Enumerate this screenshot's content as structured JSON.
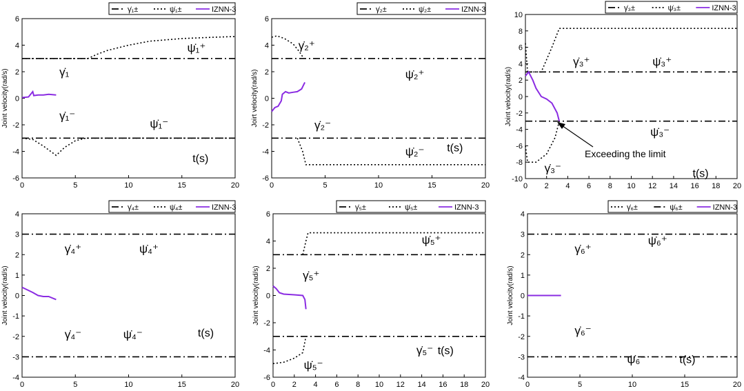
{
  "colors": {
    "izrnn": "#8a2be2",
    "limit": "#000000",
    "axis": "#000000"
  },
  "chart_data": [
    {
      "type": "line",
      "ylabel": "Joint velocity(rad/s)",
      "time_label": "t(s)",
      "xlim": [
        0,
        20
      ],
      "ylim": [
        -6,
        6
      ],
      "xticks": [
        "0",
        "5",
        "10",
        "15",
        "20"
      ],
      "yticks": [
        "-6",
        "-4",
        "-2",
        "0",
        "2",
        "4",
        "6"
      ],
      "legend": [
        "γ̇₁±",
        "ψ̇₁±",
        "IZNN-3"
      ],
      "labels": {
        "gamma_plus": "γ̇₁",
        "gamma_minus": "γ̇₁⁻",
        "psi_plus": "ψ̇₁⁺",
        "psi_minus": "ψ̇₁⁻"
      },
      "series": [
        {
          "name": "γ̇₁±",
          "style": "dashdot",
          "lines": [
            [
              [
                0,
                3
              ],
              [
                20,
                3
              ]
            ],
            [
              [
                0,
                -3
              ],
              [
                20,
                -3
              ]
            ]
          ]
        },
        {
          "name": "ψ̇₁±",
          "style": "dotted",
          "lines": [
            [
              [
                0,
                3
              ],
              [
                6.2,
                3
              ],
              [
                7,
                3.3
              ],
              [
                8,
                3.6
              ],
              [
                10,
                4.0
              ],
              [
                12,
                4.3
              ],
              [
                15,
                4.5
              ],
              [
                18,
                4.6
              ],
              [
                20,
                4.65
              ]
            ],
            [
              [
                0,
                -3
              ],
              [
                1,
                -3.1
              ],
              [
                2,
                -3.6
              ],
              [
                3.2,
                -4.3
              ],
              [
                4,
                -3.7
              ],
              [
                5,
                -3.2
              ],
              [
                6,
                -3
              ],
              [
                20,
                -3
              ]
            ]
          ]
        },
        {
          "name": "IZNN-3",
          "style": "solid",
          "lines": [
            [
              [
                0,
                0.05
              ],
              [
                0.6,
                0.1
              ],
              [
                0.8,
                0.3
              ],
              [
                1,
                0.5
              ],
              [
                1.1,
                0.2
              ],
              [
                1.5,
                0.25
              ],
              [
                2,
                0.25
              ],
              [
                2.5,
                0.3
              ],
              [
                3.2,
                0.25
              ]
            ]
          ]
        }
      ]
    },
    {
      "type": "line",
      "ylabel": "Joirt velocity(rad/s)",
      "time_label": "t(s)",
      "xlim": [
        0,
        20
      ],
      "ylim": [
        -6,
        6
      ],
      "xticks": [
        "0",
        "5",
        "10",
        "15",
        "20"
      ],
      "yticks": [
        "-6",
        "-4",
        "-2",
        "0",
        "2",
        "4",
        "6"
      ],
      "legend": [
        "γ̇₂±",
        "ψ̇₂±",
        "IZNN-3"
      ],
      "labels": {
        "gamma_plus": "γ̇₂⁺",
        "gamma_minus": "γ̇₂⁻",
        "psi_plus": "ψ̇₂⁺",
        "psi_minus": "ψ̇₂⁻"
      },
      "series": [
        {
          "name": "γ̇₂±",
          "style": "dashdot",
          "lines": [
            [
              [
                0,
                3
              ],
              [
                20,
                3
              ]
            ],
            [
              [
                0,
                -3
              ],
              [
                20,
                -3
              ]
            ]
          ]
        },
        {
          "name": "ψ̇₂±",
          "style": "dotted",
          "lines": [
            [
              [
                0,
                4.6
              ],
              [
                0.5,
                4.7
              ],
              [
                1.2,
                4.5
              ],
              [
                2,
                4.1
              ],
              [
                2.6,
                3.5
              ],
              [
                3,
                3
              ]
            ],
            [
              [
                2.4,
                -3
              ],
              [
                2.9,
                -4
              ],
              [
                3.2,
                -5
              ],
              [
                20,
                -5
              ]
            ]
          ]
        },
        {
          "name": "IZNN-3",
          "style": "solid",
          "lines": [
            [
              [
                0,
                -1.0
              ],
              [
                0.3,
                -0.7
              ],
              [
                0.6,
                -0.6
              ],
              [
                0.9,
                -0.2
              ],
              [
                1.0,
                0.3
              ],
              [
                1.3,
                0.5
              ],
              [
                1.6,
                0.4
              ],
              [
                2.0,
                0.45
              ],
              [
                2.4,
                0.5
              ],
              [
                2.8,
                0.7
              ],
              [
                3.1,
                1.2
              ]
            ]
          ]
        }
      ]
    },
    {
      "type": "line",
      "ylabel": "Joint velocity(rad/s)",
      "time_label": "t(s)",
      "annotation": "Exceeding the limit",
      "xlim": [
        0,
        20
      ],
      "ylim": [
        -10,
        10
      ],
      "xticks": [
        "0",
        "2",
        "4",
        "6",
        "8",
        "10",
        "12",
        "14",
        "16",
        "18",
        "20"
      ],
      "yticks": [
        "-10",
        "-8",
        "-6",
        "-4",
        "-2",
        "0",
        "2",
        "4",
        "6",
        "8",
        "10"
      ],
      "legend": [
        "γ̇₃±",
        "ψ̇₃±",
        "IZNN-3"
      ],
      "labels": {
        "gamma_plus": "γ̇₃⁺",
        "gamma_minus": "γ̇₃⁻",
        "psi_plus": "ψ̇₃⁺",
        "psi_minus": "ψ̇₃⁻"
      },
      "series": [
        {
          "name": "γ̇₃±",
          "style": "dashdot",
          "lines": [
            [
              [
                0,
                3
              ],
              [
                20,
                3
              ]
            ],
            [
              [
                0,
                -3
              ],
              [
                20,
                -3
              ]
            ]
          ]
        },
        {
          "name": "ψ̇₃±",
          "style": "dotted",
          "lines": [
            [
              [
                0,
                6.5
              ],
              [
                0.2,
                3
              ],
              [
                1.5,
                3
              ],
              [
                2.5,
                6
              ],
              [
                3.2,
                8.3
              ],
              [
                20,
                8.3
              ]
            ],
            [
              [
                0,
                -6
              ],
              [
                0.2,
                -8
              ],
              [
                1,
                -8
              ],
              [
                2,
                -7
              ],
              [
                2.8,
                -5
              ],
              [
                3.2,
                -3
              ]
            ]
          ]
        },
        {
          "name": "IZNN-3",
          "style": "solid",
          "lines": [
            [
              [
                0,
                2.5
              ],
              [
                0.3,
                3
              ],
              [
                0.7,
                2
              ],
              [
                1.0,
                1.0
              ],
              [
                1.5,
                0
              ],
              [
                2.0,
                -0.3
              ],
              [
                2.5,
                -0.8
              ],
              [
                3.0,
                -2
              ],
              [
                3.2,
                -3
              ]
            ]
          ]
        }
      ]
    },
    {
      "type": "line",
      "ylabel": "Joint velocity(rad/s)",
      "time_label": "t(s)",
      "xlim": [
        0,
        20
      ],
      "ylim": [
        -4,
        4
      ],
      "xticks": [
        "0",
        "5",
        "10",
        "15",
        "20"
      ],
      "yticks": [
        "-4",
        "-3",
        "-2",
        "-1",
        "0",
        "1",
        "2",
        "3",
        "4"
      ],
      "legend": [
        "γ̇₄±",
        "ψ̇₄±",
        "IZNN-3"
      ],
      "labels": {
        "gamma_plus": "γ̇₄⁺",
        "gamma_minus": "γ̇₄⁻",
        "psi_plus": "ψ̇₄⁺",
        "psi_minus": "ψ̇₄⁻"
      },
      "series": [
        {
          "name": "γ̇₄±",
          "style": "dashdot",
          "lines": [
            [
              [
                0,
                3
              ],
              [
                20,
                3
              ]
            ],
            [
              [
                0,
                -3
              ],
              [
                20,
                -3
              ]
            ]
          ]
        },
        {
          "name": "ψ̇₄±",
          "style": "dotted",
          "lines": []
        },
        {
          "name": "IZNN-3",
          "style": "solid",
          "lines": [
            [
              [
                0,
                0.4
              ],
              [
                0.4,
                0.3
              ],
              [
                1,
                0.15
              ],
              [
                1.5,
                0
              ],
              [
                2,
                -0.05
              ],
              [
                2.5,
                -0.05
              ],
              [
                3.2,
                -0.2
              ]
            ]
          ]
        }
      ]
    },
    {
      "type": "line",
      "ylabel": "Joint velocity(rad/s)",
      "time_label": "t(s)",
      "xlim": [
        0,
        20
      ],
      "ylim": [
        -6,
        6
      ],
      "xticks": [
        "0",
        "2",
        "4",
        "6",
        "8",
        "10",
        "12",
        "14",
        "16",
        "18",
        "20"
      ],
      "yticks": [
        "-6",
        "-4",
        "-2",
        "0",
        "2",
        "4",
        "6"
      ],
      "legend": [
        "γ̇₅±",
        "ψ̇₅±",
        "IZNN-3"
      ],
      "labels": {
        "gamma_plus": "γ̇₅⁺",
        "gamma_minus": "γ̇₅⁻",
        "psi_plus": "ψ̇₅⁺",
        "psi_minus": "ψ̇₅⁻"
      },
      "series": [
        {
          "name": "γ̇₅±",
          "style": "dashdot",
          "lines": [
            [
              [
                0,
                3
              ],
              [
                20,
                3
              ]
            ],
            [
              [
                0,
                -3
              ],
              [
                20,
                -3
              ]
            ]
          ]
        },
        {
          "name": "ψ̇₅±",
          "style": "dotted",
          "lines": [
            [
              [
                2.8,
                3
              ],
              [
                3.1,
                4
              ],
              [
                3.3,
                4.6
              ],
              [
                20,
                4.6
              ]
            ],
            [
              [
                0,
                -5
              ],
              [
                1,
                -4.9
              ],
              [
                2,
                -4.6
              ],
              [
                2.8,
                -4.2
              ],
              [
                3.1,
                -3
              ]
            ]
          ]
        },
        {
          "name": "IZNN-3",
          "style": "solid",
          "lines": [
            [
              [
                0,
                0.7
              ],
              [
                0.3,
                0.5
              ],
              [
                0.6,
                0.2
              ],
              [
                1,
                0.1
              ],
              [
                2,
                0.05
              ],
              [
                2.8,
                0
              ],
              [
                3.0,
                -0.3
              ],
              [
                3.1,
                -1
              ]
            ]
          ]
        }
      ]
    },
    {
      "type": "line",
      "ylabel": "Joint velocity(rad/s)",
      "time_label": "t(s)",
      "xlim": [
        0,
        20
      ],
      "ylim": [
        -4,
        4
      ],
      "xticks": [
        "0",
        "5",
        "10",
        "15",
        "20"
      ],
      "yticks": [
        "-4",
        "-3",
        "-2",
        "-1",
        "0",
        "1",
        "2",
        "3",
        "4"
      ],
      "legend": [
        "γ̇₆±",
        "ψ̇₆±",
        "IZNN-3"
      ],
      "labels": {
        "gamma_plus": "γ̇₆⁺",
        "gamma_minus": "γ̇₆⁻",
        "psi_plus": "ψ̇₆⁺",
        "psi_minus": "ψ̇₆⁻"
      },
      "series": [
        {
          "name": "γ̇₆±",
          "style": "dotted",
          "lines": []
        },
        {
          "name": "ψ̇₆±",
          "style": "dashdot",
          "lines": [
            [
              [
                0,
                3
              ],
              [
                20,
                3
              ]
            ],
            [
              [
                0,
                -3
              ],
              [
                20,
                -3
              ]
            ]
          ]
        },
        {
          "name": "IZNN-3",
          "style": "solid",
          "lines": [
            [
              [
                0,
                0
              ],
              [
                3.2,
                0
              ]
            ]
          ]
        }
      ]
    }
  ]
}
